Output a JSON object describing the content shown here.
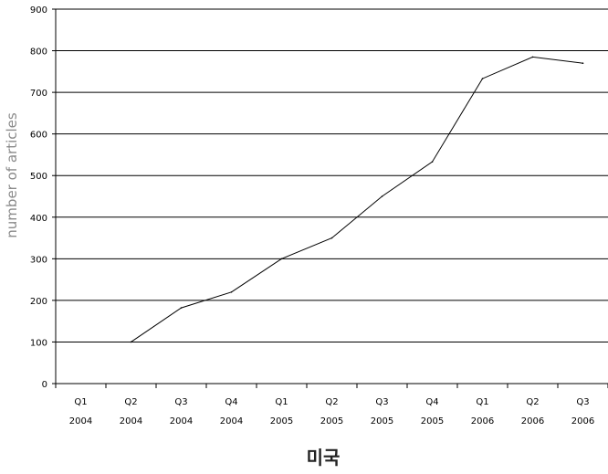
{
  "chart_data": {
    "type": "line",
    "title": "미국",
    "ylabel": "number of articles",
    "xlabel": "",
    "ylim": [
      0,
      900
    ],
    "yticks": [
      0,
      100,
      200,
      300,
      400,
      500,
      600,
      700,
      800,
      900
    ],
    "grid": true,
    "categories": [
      [
        "Q1",
        "2004"
      ],
      [
        "Q2",
        "2004"
      ],
      [
        "Q3",
        "2004"
      ],
      [
        "Q4",
        "2004"
      ],
      [
        "Q1",
        "2005"
      ],
      [
        "Q2",
        "2005"
      ],
      [
        "Q3",
        "2005"
      ],
      [
        "Q4",
        "2005"
      ],
      [
        "Q1",
        "2006"
      ],
      [
        "Q2",
        "2006"
      ],
      [
        "Q3",
        "2006"
      ]
    ],
    "series": [
      {
        "values": [
          null,
          100,
          182,
          220,
          300,
          350,
          450,
          533,
          733,
          785,
          770
        ]
      }
    ]
  }
}
